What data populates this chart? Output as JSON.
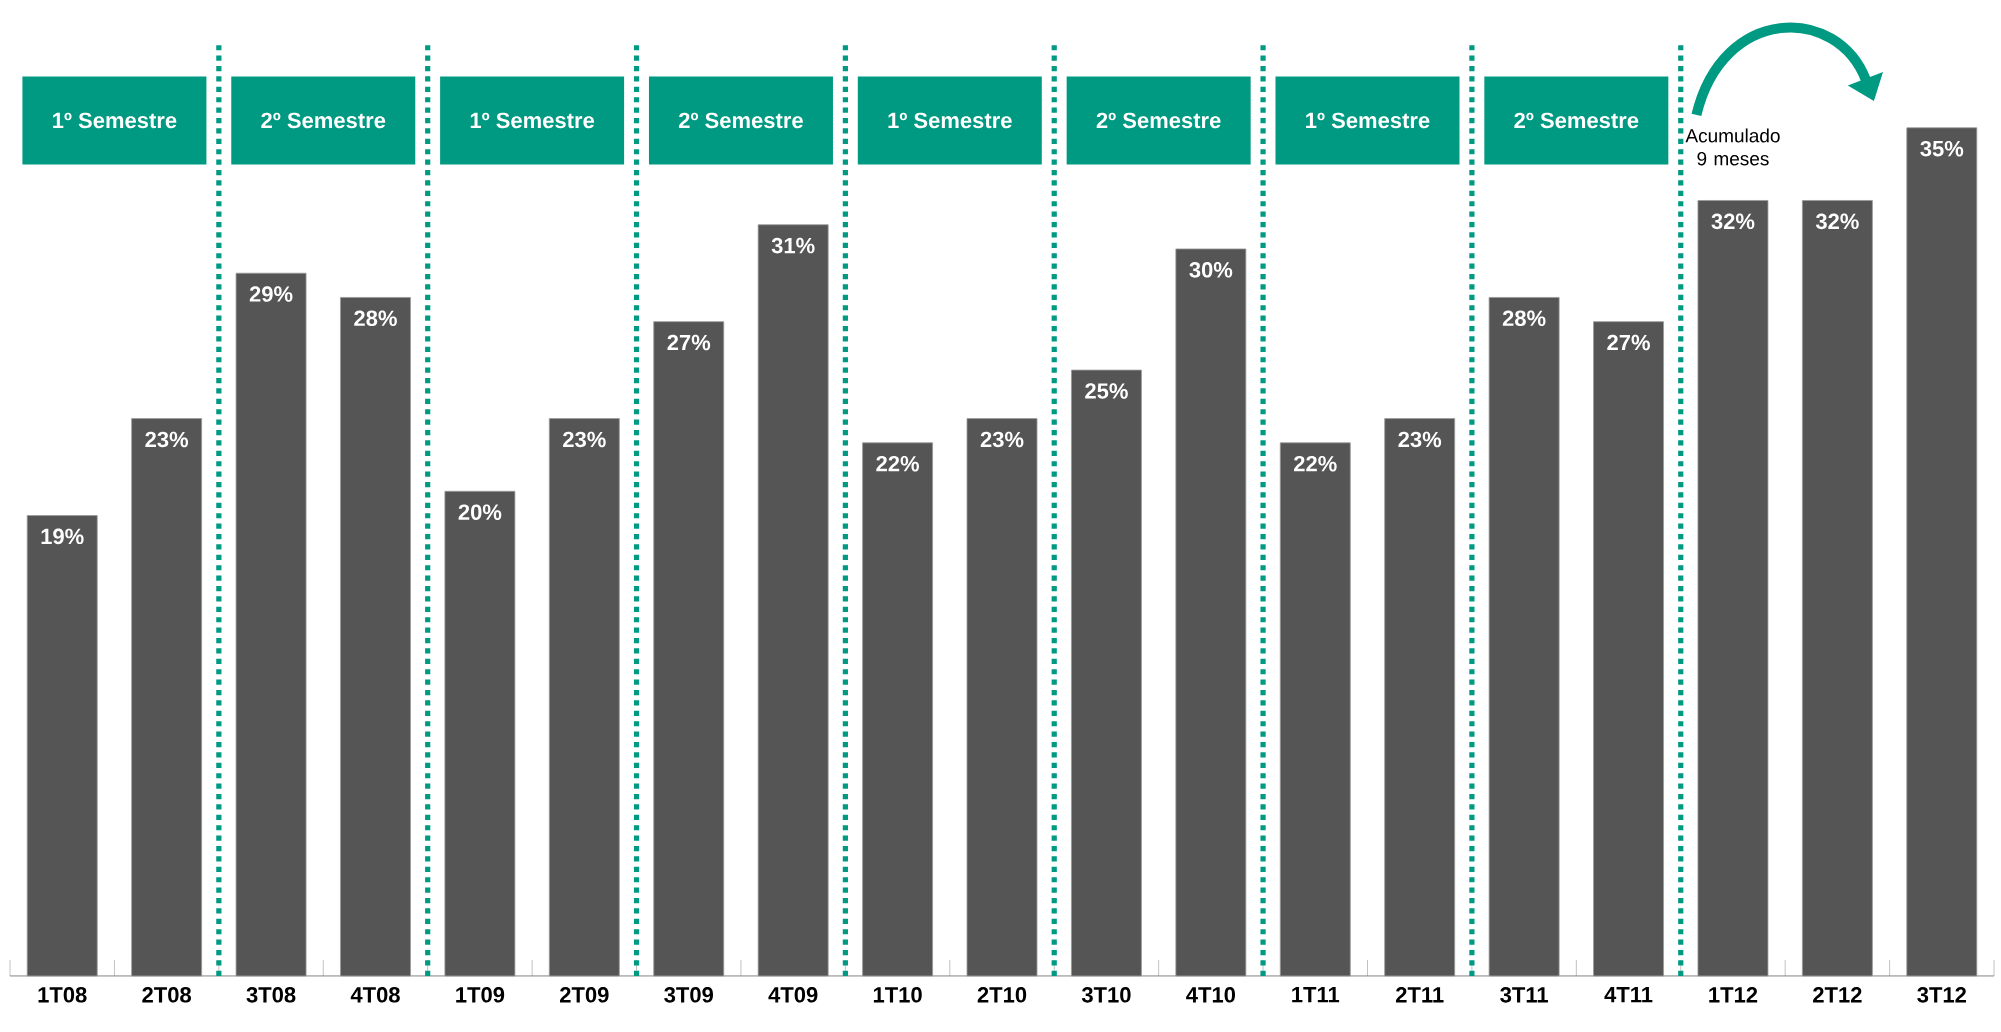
{
  "chart_data": {
    "type": "bar",
    "categories": [
      "1T08",
      "2T08",
      "3T08",
      "4T08",
      "1T09",
      "2T09",
      "3T09",
      "4T09",
      "1T10",
      "2T10",
      "3T10",
      "4T10",
      "1T11",
      "2T11",
      "3T11",
      "4T11",
      "1T12",
      "2T12",
      "3T12"
    ],
    "values": [
      19,
      23,
      29,
      28,
      20,
      23,
      27,
      31,
      22,
      23,
      25,
      30,
      22,
      23,
      28,
      27,
      32,
      32,
      35
    ],
    "value_labels": [
      "19%",
      "23%",
      "29%",
      "28%",
      "20%",
      "23%",
      "27%",
      "31%",
      "22%",
      "23%",
      "25%",
      "30%",
      "22%",
      "23%",
      "28%",
      "27%",
      "32%",
      "32%",
      "35%"
    ],
    "color": "#555555",
    "annotations": [
      "1º Semestre",
      "2º Semestre",
      "1º Semestre",
      "2º Semestre",
      "1º Semestre",
      "2º Semestre",
      "1º Semestre",
      "2º Semestre",
      "Acumulado\n9 meses"
    ],
    "grid": false
  }
}
